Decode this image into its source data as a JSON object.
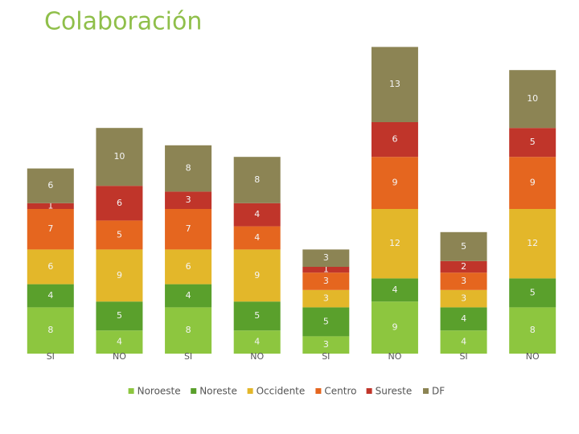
{
  "chart_data": {
    "type": "stacked_bar",
    "title": "Colaboración",
    "categories": [
      "SI",
      "NO",
      "SI",
      "NO",
      "SI",
      "NO",
      "SI",
      "NO"
    ],
    "series": [
      {
        "name": "Noroeste",
        "color": "#8dc63f",
        "values": [
          8,
          4,
          8,
          4,
          3,
          9,
          4,
          8
        ]
      },
      {
        "name": "Noreste",
        "color": "#5aa02c",
        "values": [
          4,
          5,
          4,
          5,
          5,
          4,
          4,
          5
        ]
      },
      {
        "name": "Occidente",
        "color": "#e3b72a",
        "values": [
          6,
          9,
          6,
          9,
          3,
          12,
          3,
          12
        ]
      },
      {
        "name": "Centro",
        "color": "#e5661f",
        "values": [
          7,
          5,
          7,
          4,
          3,
          9,
          3,
          9
        ]
      },
      {
        "name": "Sureste",
        "color": "#c0352a",
        "values": [
          1,
          6,
          3,
          4,
          1,
          6,
          2,
          5
        ]
      },
      {
        "name": "DF",
        "color": "#8c8454",
        "values": [
          6,
          10,
          8,
          8,
          3,
          13,
          5,
          10
        ]
      }
    ],
    "ylim": [
      0,
      55
    ]
  }
}
